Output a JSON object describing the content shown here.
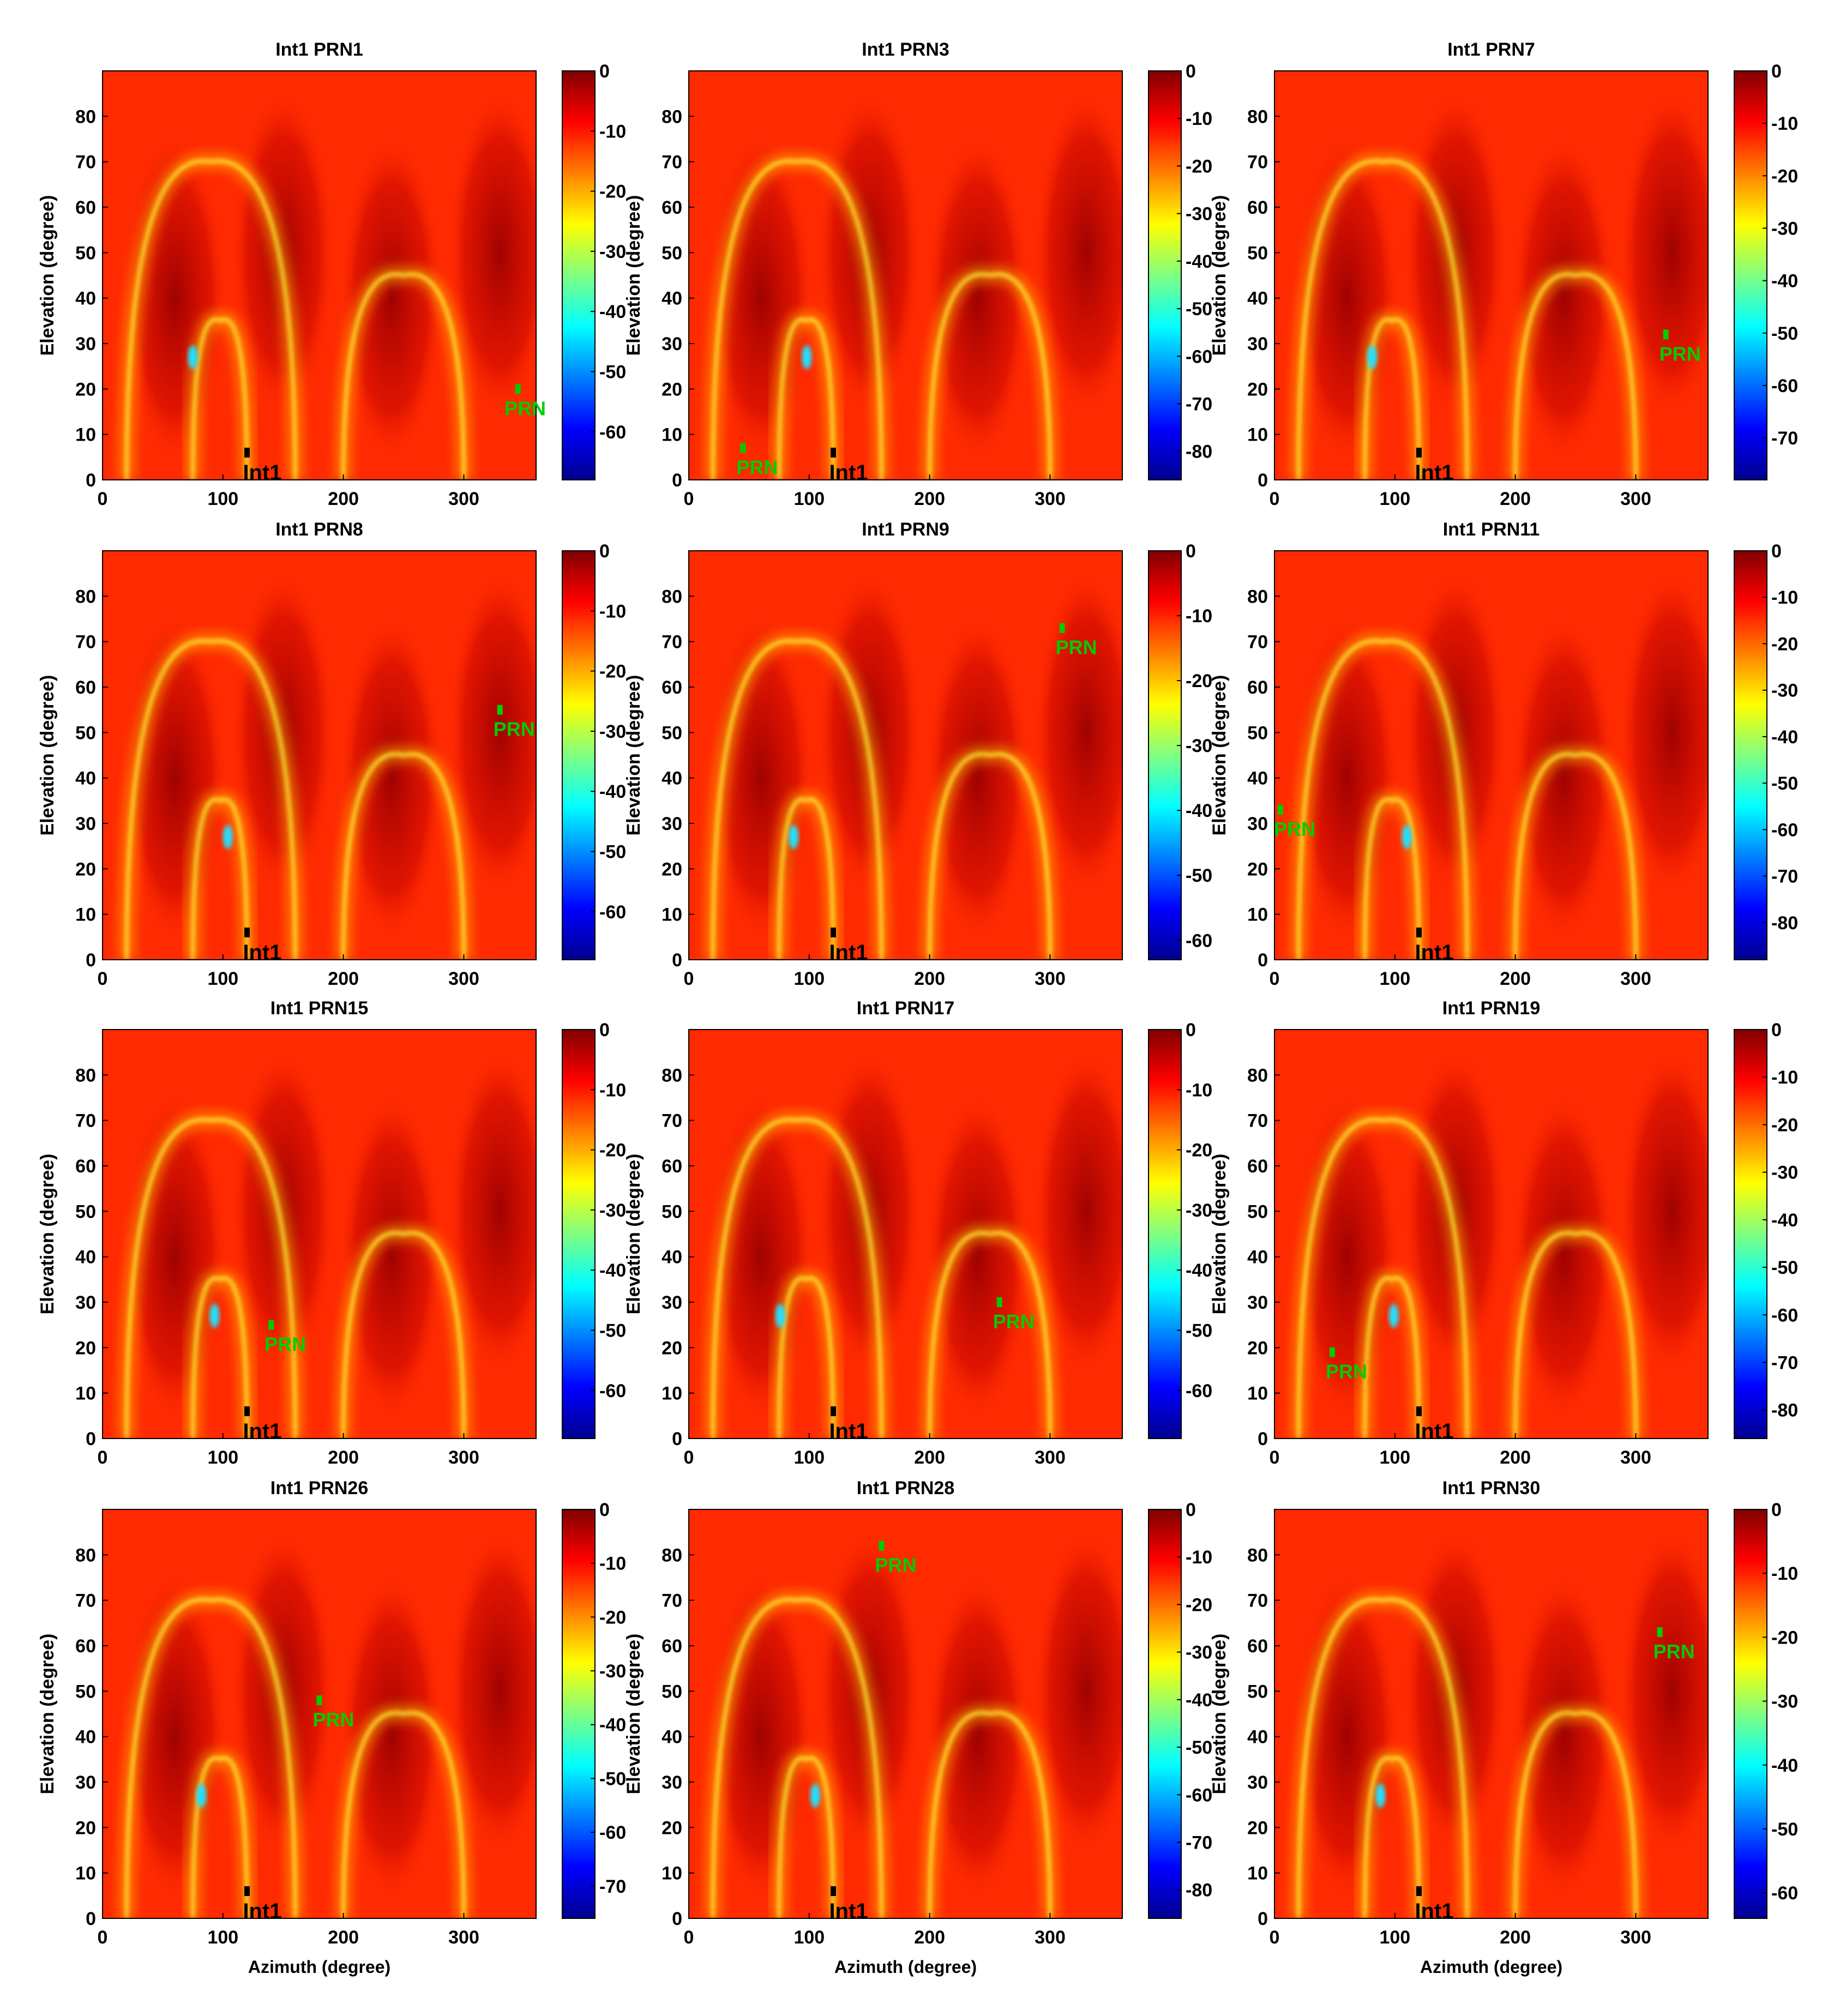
{
  "chart_data": [
    {
      "type": "heatmap",
      "title": "Int1   PRN1",
      "ylabel": "Elevation (degree)",
      "xlabel": "",
      "xlim": [
        0,
        360
      ],
      "ylim": [
        0,
        90
      ],
      "x_ticks": [
        0,
        100,
        200,
        300
      ],
      "y_ticks": [
        0,
        10,
        20,
        30,
        40,
        50,
        60,
        70,
        80
      ],
      "colorbar_ticks": [
        0,
        -10,
        -20,
        -30,
        -40,
        -50,
        -60
      ],
      "colorbar_min": -68,
      "prn": {
        "label": "PRN",
        "az": 345,
        "el": 20
      },
      "int1": {
        "label": "Int1",
        "az": 120,
        "el": 6
      }
    },
    {
      "type": "heatmap",
      "title": "Int1   PRN3",
      "ylabel": "Elevation (degree)",
      "xlabel": "",
      "xlim": [
        0,
        360
      ],
      "ylim": [
        0,
        90
      ],
      "x_ticks": [
        0,
        100,
        200,
        300
      ],
      "y_ticks": [
        0,
        10,
        20,
        30,
        40,
        50,
        60,
        70,
        80
      ],
      "colorbar_ticks": [
        0,
        -10,
        -20,
        -30,
        -40,
        -50,
        -60,
        -70,
        -80
      ],
      "colorbar_min": -86,
      "prn": {
        "label": "PRN",
        "az": 45,
        "el": 7
      },
      "int1": {
        "label": "Int1",
        "az": 120,
        "el": 6
      }
    },
    {
      "type": "heatmap",
      "title": "Int1   PRN7",
      "ylabel": "Elevation (degree)",
      "xlabel": "",
      "xlim": [
        0,
        360
      ],
      "ylim": [
        0,
        90
      ],
      "x_ticks": [
        0,
        100,
        200,
        300
      ],
      "y_ticks": [
        0,
        10,
        20,
        30,
        40,
        50,
        60,
        70,
        80
      ],
      "colorbar_ticks": [
        0,
        -10,
        -20,
        -30,
        -40,
        -50,
        -60,
        -70
      ],
      "colorbar_min": -78,
      "prn": {
        "label": "PRN",
        "az": 325,
        "el": 32
      },
      "int1": {
        "label": "Int1",
        "az": 120,
        "el": 6
      }
    },
    {
      "type": "heatmap",
      "title": "Int1   PRN8",
      "ylabel": "Elevation (degree)",
      "xlabel": "",
      "xlim": [
        0,
        360
      ],
      "ylim": [
        0,
        90
      ],
      "x_ticks": [
        0,
        100,
        200,
        300
      ],
      "y_ticks": [
        0,
        10,
        20,
        30,
        40,
        50,
        60,
        70,
        80
      ],
      "colorbar_ticks": [
        0,
        -10,
        -20,
        -30,
        -40,
        -50,
        -60
      ],
      "colorbar_min": -68,
      "prn": {
        "label": "PRN",
        "az": 330,
        "el": 55
      },
      "int1": {
        "label": "Int1",
        "az": 120,
        "el": 6
      }
    },
    {
      "type": "heatmap",
      "title": "Int1   PRN9",
      "ylabel": "Elevation (degree)",
      "xlabel": "",
      "xlim": [
        0,
        360
      ],
      "ylim": [
        0,
        90
      ],
      "x_ticks": [
        0,
        100,
        200,
        300
      ],
      "y_ticks": [
        0,
        10,
        20,
        30,
        40,
        50,
        60,
        70,
        80
      ],
      "colorbar_ticks": [
        0,
        -10,
        -20,
        -30,
        -40,
        -50,
        -60
      ],
      "colorbar_min": -63,
      "prn": {
        "label": "PRN",
        "az": 310,
        "el": 73
      },
      "int1": {
        "label": "Int1",
        "az": 120,
        "el": 6
      }
    },
    {
      "type": "heatmap",
      "title": "Int1   PRN11",
      "ylabel": "Elevation (degree)",
      "xlabel": "",
      "xlim": [
        0,
        360
      ],
      "ylim": [
        0,
        90
      ],
      "x_ticks": [
        0,
        100,
        200,
        300
      ],
      "y_ticks": [
        0,
        10,
        20,
        30,
        40,
        50,
        60,
        70,
        80
      ],
      "colorbar_ticks": [
        0,
        -10,
        -20,
        -30,
        -40,
        -50,
        -60,
        -70,
        -80
      ],
      "colorbar_min": -88,
      "prn": {
        "label": "PRN",
        "az": 5,
        "el": 33
      },
      "int1": {
        "label": "Int1",
        "az": 120,
        "el": 6
      }
    },
    {
      "type": "heatmap",
      "title": "Int1   PRN15",
      "ylabel": "Elevation (degree)",
      "xlabel": "",
      "xlim": [
        0,
        360
      ],
      "ylim": [
        0,
        90
      ],
      "x_ticks": [
        0,
        100,
        200,
        300
      ],
      "y_ticks": [
        0,
        10,
        20,
        30,
        40,
        50,
        60,
        70,
        80
      ],
      "colorbar_ticks": [
        0,
        -10,
        -20,
        -30,
        -40,
        -50,
        -60
      ],
      "colorbar_min": -68,
      "prn": {
        "label": "PRN",
        "az": 140,
        "el": 25
      },
      "int1": {
        "label": "Int1",
        "az": 120,
        "el": 6
      }
    },
    {
      "type": "heatmap",
      "title": "Int1   PRN17",
      "ylabel": "Elevation (degree)",
      "xlabel": "",
      "xlim": [
        0,
        360
      ],
      "ylim": [
        0,
        90
      ],
      "x_ticks": [
        0,
        100,
        200,
        300
      ],
      "y_ticks": [
        0,
        10,
        20,
        30,
        40,
        50,
        60,
        70,
        80
      ],
      "colorbar_ticks": [
        0,
        -10,
        -20,
        -30,
        -40,
        -50,
        -60
      ],
      "colorbar_min": -68,
      "prn": {
        "label": "PRN",
        "az": 258,
        "el": 30
      },
      "int1": {
        "label": "Int1",
        "az": 120,
        "el": 6
      }
    },
    {
      "type": "heatmap",
      "title": "Int1   PRN19",
      "ylabel": "Elevation (degree)",
      "xlabel": "",
      "xlim": [
        0,
        360
      ],
      "ylim": [
        0,
        90
      ],
      "x_ticks": [
        0,
        100,
        200,
        300
      ],
      "y_ticks": [
        0,
        10,
        20,
        30,
        40,
        50,
        60,
        70,
        80
      ],
      "colorbar_ticks": [
        0,
        -10,
        -20,
        -30,
        -40,
        -50,
        -60,
        -70,
        -80
      ],
      "colorbar_min": -86,
      "prn": {
        "label": "PRN",
        "az": 48,
        "el": 19
      },
      "int1": {
        "label": "Int1",
        "az": 120,
        "el": 6
      }
    },
    {
      "type": "heatmap",
      "title": "Int1   PRN26",
      "ylabel": "Elevation (degree)",
      "xlabel": "Azimuth (degree)",
      "xlim": [
        0,
        360
      ],
      "ylim": [
        0,
        90
      ],
      "x_ticks": [
        0,
        100,
        200,
        300
      ],
      "y_ticks": [
        0,
        10,
        20,
        30,
        40,
        50,
        60,
        70,
        80
      ],
      "colorbar_ticks": [
        0,
        -10,
        -20,
        -30,
        -40,
        -50,
        -60,
        -70
      ],
      "colorbar_min": -76,
      "prn": {
        "label": "PRN",
        "az": 180,
        "el": 48
      },
      "int1": {
        "label": "Int1",
        "az": 120,
        "el": 6
      }
    },
    {
      "type": "heatmap",
      "title": "Int1   PRN28",
      "ylabel": "Elevation (degree)",
      "xlabel": "Azimuth (degree)",
      "xlim": [
        0,
        360
      ],
      "ylim": [
        0,
        90
      ],
      "x_ticks": [
        0,
        100,
        200,
        300
      ],
      "y_ticks": [
        0,
        10,
        20,
        30,
        40,
        50,
        60,
        70,
        80
      ],
      "colorbar_ticks": [
        0,
        -10,
        -20,
        -30,
        -40,
        -50,
        -60,
        -70,
        -80
      ],
      "colorbar_min": -86,
      "prn": {
        "label": "PRN",
        "az": 160,
        "el": 82
      },
      "int1": {
        "label": "Int1",
        "az": 120,
        "el": 6
      }
    },
    {
      "type": "heatmap",
      "title": "Int1   PRN30",
      "ylabel": "Elevation (degree)",
      "xlabel": "Azimuth (degree)",
      "xlim": [
        0,
        360
      ],
      "ylim": [
        0,
        90
      ],
      "x_ticks": [
        0,
        100,
        200,
        300
      ],
      "y_ticks": [
        0,
        10,
        20,
        30,
        40,
        50,
        60,
        70,
        80
      ],
      "colorbar_ticks": [
        0,
        -10,
        -20,
        -30,
        -40,
        -50,
        -60
      ],
      "colorbar_min": -64,
      "prn": {
        "label": "PRN",
        "az": 320,
        "el": 63
      },
      "int1": {
        "label": "Int1",
        "az": 120,
        "el": 6
      }
    }
  ],
  "colors": {
    "colormap": [
      "#00008f",
      "#0000ff",
      "#00ffff",
      "#ffff00",
      "#ff0000",
      "#800000"
    ],
    "background_red": "#ff2a00",
    "dark_lobe": "#a80000",
    "prn_marker": "#00cc00",
    "int1_marker": "#000000"
  }
}
